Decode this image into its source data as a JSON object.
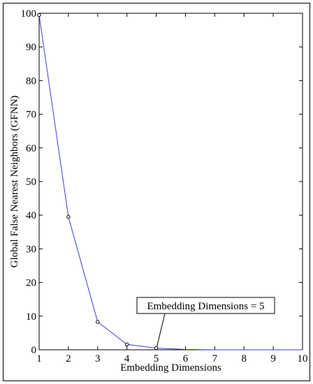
{
  "chart_data": {
    "type": "line",
    "title": "",
    "xlabel": "Embedding Dimensions",
    "ylabel": "Global False Nearest Neighbors (GFNN)",
    "xlim": [
      1,
      10
    ],
    "ylim": [
      0,
      100
    ],
    "xticks": [
      1,
      2,
      3,
      4,
      5,
      6,
      7,
      8,
      9,
      10
    ],
    "yticks": [
      0,
      10,
      20,
      30,
      40,
      50,
      60,
      70,
      80,
      90,
      100
    ],
    "grid": false,
    "series": [
      {
        "x": [
          1,
          2,
          3,
          4,
          5,
          6,
          7,
          8,
          9,
          10
        ],
        "y": [
          99.5,
          39.5,
          8.3,
          1.6,
          0.5,
          0.1,
          0,
          0,
          0,
          0
        ],
        "color": "#3b3bd6",
        "marked_count": 5
      }
    ],
    "annotations": [
      {
        "text": "Embedding Dimensions = 5",
        "point": {
          "x": 5,
          "y": 0.5
        }
      }
    ]
  }
}
